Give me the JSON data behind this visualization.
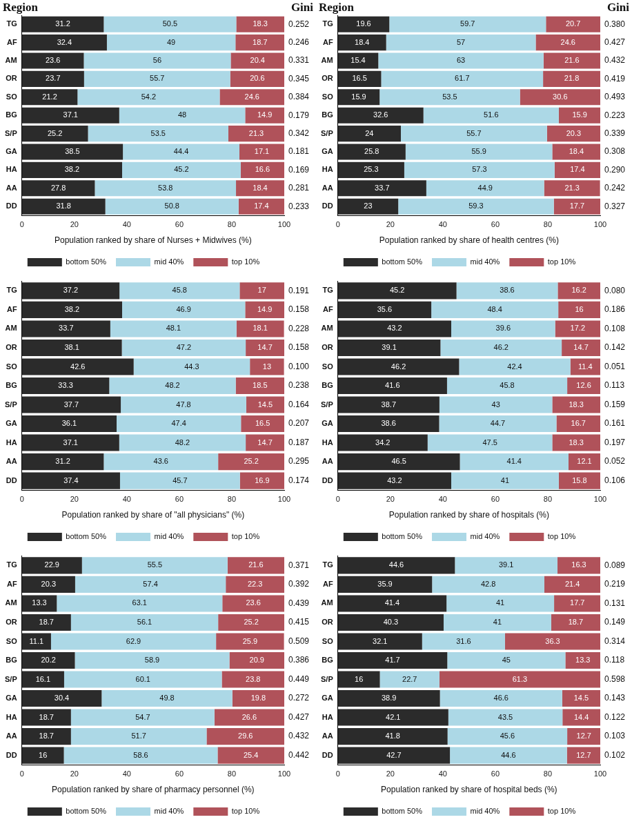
{
  "chart_data": [
    {
      "type": "bar",
      "orientation": "horizontal",
      "stacked": true,
      "ylabel": "Region",
      "xlabel": "Population ranked by share of Nurses + Midwives (%)",
      "categories": [
        "TG",
        "AF",
        "AM",
        "OR",
        "SO",
        "BG",
        "S/P",
        "GA",
        "HA",
        "AA",
        "DD"
      ],
      "xlim": [
        0,
        100
      ],
      "xticks": [
        0,
        20,
        40,
        60,
        80,
        100
      ],
      "grid": false,
      "legend": "bottom",
      "data_labels": true,
      "series": [
        {
          "name": "bottom 50%",
          "color": "#2b2b2b",
          "values": [
            31.2,
            32.4,
            23.6,
            23.7,
            21.2,
            37.1,
            25.2,
            38.5,
            38.2,
            27.8,
            31.8
          ]
        },
        {
          "name": "mid 40%",
          "color": "#acd8e6",
          "values": [
            50.5,
            49,
            56,
            55.7,
            54.2,
            48,
            53.5,
            44.4,
            45.2,
            53.8,
            50.8
          ]
        },
        {
          "name": "top 10%",
          "color": "#b0525a",
          "values": [
            18.3,
            18.7,
            20.4,
            20.6,
            24.6,
            14.9,
            21.3,
            17.1,
            16.6,
            18.4,
            17.4
          ]
        }
      ],
      "annotations": [
        "Gini",
        "0.252",
        "0.246",
        "0.331",
        "0.345",
        "0.384",
        "0.179",
        "0.342",
        "0.181",
        "0.169",
        "0.281",
        "0.233"
      ]
    },
    {
      "type": "bar",
      "orientation": "horizontal",
      "stacked": true,
      "ylabel": "Region",
      "xlabel": "Population ranked by share of health centres (%)",
      "categories": [
        "TG",
        "AF",
        "AM",
        "OR",
        "SO",
        "BG",
        "S/P",
        "GA",
        "HA",
        "AA",
        "DD"
      ],
      "xlim": [
        0,
        100
      ],
      "xticks": [
        0,
        20,
        40,
        60,
        80,
        100
      ],
      "grid": false,
      "legend": "bottom",
      "data_labels": true,
      "series": [
        {
          "name": "bottom 50%",
          "color": "#2b2b2b",
          "values": [
            19.6,
            18.4,
            15.4,
            16.5,
            15.9,
            32.6,
            24,
            25.8,
            25.3,
            33.7,
            23
          ]
        },
        {
          "name": "mid 40%",
          "color": "#acd8e6",
          "values": [
            59.7,
            57,
            63,
            61.7,
            53.5,
            51.6,
            55.7,
            55.9,
            57.3,
            44.9,
            59.3
          ]
        },
        {
          "name": "top 10%",
          "color": "#b0525a",
          "values": [
            20.7,
            24.6,
            21.6,
            21.8,
            30.6,
            15.9,
            20.3,
            18.4,
            17.4,
            21.3,
            17.7
          ]
        }
      ],
      "annotations": [
        "Gini",
        "0.380",
        "0.427",
        "0.432",
        "0.419",
        "0.493",
        "0.223",
        "0.339",
        "0.308",
        "0.290",
        "0.242",
        "0.327"
      ]
    },
    {
      "type": "bar",
      "orientation": "horizontal",
      "stacked": true,
      "xlabel": "Population ranked by share of \"all physicians\" (%)",
      "categories": [
        "TG",
        "AF",
        "AM",
        "OR",
        "SO",
        "BG",
        "S/P",
        "GA",
        "HA",
        "AA",
        "DD"
      ],
      "xlim": [
        0,
        100
      ],
      "xticks": [
        0,
        20,
        40,
        60,
        80,
        100
      ],
      "grid": false,
      "legend": "bottom",
      "data_labels": true,
      "series": [
        {
          "name": "bottom 50%",
          "color": "#2b2b2b",
          "values": [
            37.2,
            38.2,
            33.7,
            38.1,
            42.6,
            33.3,
            37.7,
            36.1,
            37.1,
            31.2,
            37.4
          ]
        },
        {
          "name": "mid 40%",
          "color": "#acd8e6",
          "values": [
            45.8,
            46.9,
            48.1,
            47.2,
            44.3,
            48.2,
            47.8,
            47.4,
            48.2,
            43.6,
            45.7
          ]
        },
        {
          "name": "top 10%",
          "color": "#b0525a",
          "values": [
            17,
            14.9,
            18.1,
            14.7,
            13,
            18.5,
            14.5,
            16.5,
            14.7,
            25.2,
            16.9
          ]
        }
      ],
      "annotations": [
        "0.191",
        "0.158",
        "0.228",
        "0.158",
        "0.100",
        "0.238",
        "0.164",
        "0.207",
        "0.187",
        "0.295",
        "0.174"
      ]
    },
    {
      "type": "bar",
      "orientation": "horizontal",
      "stacked": true,
      "xlabel": "Population ranked by share of hospitals (%)",
      "categories": [
        "TG",
        "AF",
        "AM",
        "OR",
        "SO",
        "BG",
        "S/P",
        "GA",
        "HA",
        "AA",
        "DD"
      ],
      "xlim": [
        0,
        100
      ],
      "xticks": [
        0,
        20,
        40,
        60,
        80,
        100
      ],
      "grid": false,
      "legend": "bottom",
      "data_labels": true,
      "series": [
        {
          "name": "bottom 50%",
          "color": "#2b2b2b",
          "values": [
            45.2,
            35.6,
            43.2,
            39.1,
            46.2,
            41.6,
            38.7,
            38.6,
            34.2,
            46.5,
            43.2
          ]
        },
        {
          "name": "mid 40%",
          "color": "#acd8e6",
          "values": [
            38.6,
            48.4,
            39.6,
            46.2,
            42.4,
            45.8,
            43,
            44.7,
            47.5,
            41.4,
            41
          ]
        },
        {
          "name": "top 10%",
          "color": "#b0525a",
          "values": [
            16.2,
            16,
            17.2,
            14.7,
            11.4,
            12.6,
            18.3,
            16.7,
            18.3,
            12.1,
            15.8
          ]
        }
      ],
      "annotations": [
        "0.080",
        "0.186",
        "0.108",
        "0.142",
        "0.051",
        "0.113",
        "0.159",
        "0.161",
        "0.197",
        "0.052",
        "0.106"
      ]
    },
    {
      "type": "bar",
      "orientation": "horizontal",
      "stacked": true,
      "xlabel": "Population ranked by share of pharmacy personnel (%)",
      "categories": [
        "TG",
        "AF",
        "AM",
        "OR",
        "SO",
        "BG",
        "S/P",
        "GA",
        "HA",
        "AA",
        "DD"
      ],
      "xlim": [
        0,
        100
      ],
      "xticks": [
        0,
        20,
        40,
        60,
        80,
        100
      ],
      "grid": false,
      "legend": "bottom",
      "data_labels": true,
      "series": [
        {
          "name": "bottom 50%",
          "color": "#2b2b2b",
          "values": [
            22.9,
            20.3,
            13.3,
            18.7,
            11.1,
            20.2,
            16.1,
            30.4,
            18.7,
            18.7,
            16
          ]
        },
        {
          "name": "mid 40%",
          "color": "#acd8e6",
          "values": [
            55.5,
            57.4,
            63.1,
            56.1,
            62.9,
            58.9,
            60.1,
            49.8,
            54.7,
            51.7,
            58.6
          ]
        },
        {
          "name": "top 10%",
          "color": "#b0525a",
          "values": [
            21.6,
            22.3,
            23.6,
            25.2,
            25.9,
            20.9,
            23.8,
            19.8,
            26.6,
            29.6,
            25.4
          ]
        }
      ],
      "annotations": [
        "0.371",
        "0.392",
        "0.439",
        "0.415",
        "0.509",
        "0.386",
        "0.449",
        "0.272",
        "0.427",
        "0.432",
        "0.442"
      ]
    },
    {
      "type": "bar",
      "orientation": "horizontal",
      "stacked": true,
      "xlabel": "Population ranked by share of hospital beds (%)",
      "categories": [
        "TG",
        "AF",
        "AM",
        "OR",
        "SO",
        "BG",
        "S/P",
        "GA",
        "HA",
        "AA",
        "DD"
      ],
      "xlim": [
        0,
        100
      ],
      "xticks": [
        0,
        20,
        40,
        60,
        80,
        100
      ],
      "grid": false,
      "legend": "bottom",
      "data_labels": true,
      "series": [
        {
          "name": "bottom 50%",
          "color": "#2b2b2b",
          "values": [
            44.6,
            35.9,
            41.4,
            40.3,
            32.1,
            41.7,
            16,
            38.9,
            42.1,
            41.8,
            42.7
          ]
        },
        {
          "name": "mid 40%",
          "color": "#acd8e6",
          "values": [
            39.1,
            42.8,
            41,
            41,
            31.6,
            45,
            22.7,
            46.6,
            43.5,
            45.6,
            44.6
          ]
        },
        {
          "name": "top 10%",
          "color": "#b0525a",
          "values": [
            16.3,
            21.4,
            17.7,
            18.7,
            36.3,
            13.3,
            61.3,
            14.5,
            14.4,
            12.7,
            12.7
          ]
        }
      ],
      "annotations": [
        "0.089",
        "0.219",
        "0.131",
        "0.149",
        "0.314",
        "0.118",
        "0.598",
        "0.143",
        "0.122",
        "0.103",
        "0.102"
      ]
    }
  ]
}
